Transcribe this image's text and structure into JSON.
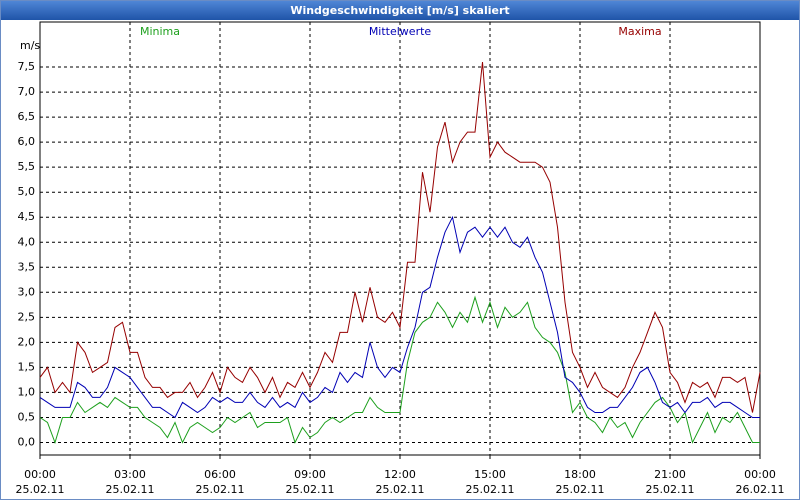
{
  "chart_data": {
    "type": "line",
    "title": "Windgeschwindigkeit [m/s] skaliert",
    "y_label": "m/s",
    "x": [
      0,
      0.25,
      0.5,
      0.75,
      1,
      1.25,
      1.5,
      1.75,
      2,
      2.25,
      2.5,
      2.75,
      3,
      3.25,
      3.5,
      3.75,
      4,
      4.25,
      4.5,
      4.75,
      5,
      5.25,
      5.5,
      5.75,
      6,
      6.25,
      6.5,
      6.75,
      7,
      7.25,
      7.5,
      7.75,
      8,
      8.25,
      8.5,
      8.75,
      9,
      9.25,
      9.5,
      9.75,
      10,
      10.25,
      10.5,
      10.75,
      11,
      11.25,
      11.5,
      11.75,
      12,
      12.25,
      12.5,
      12.75,
      13,
      13.25,
      13.5,
      13.75,
      14,
      14.25,
      14.5,
      14.75,
      15,
      15.25,
      15.5,
      15.75,
      16,
      16.25,
      16.5,
      16.75,
      17,
      17.25,
      17.5,
      17.75,
      18,
      18.25,
      18.5,
      18.75,
      19,
      19.25,
      19.5,
      19.75,
      20,
      20.25,
      20.5,
      20.75,
      21,
      21.25,
      21.5,
      21.75,
      22,
      22.25,
      22.5,
      22.75,
      23,
      23.25,
      23.5,
      23.75,
      24
    ],
    "series": [
      {
        "name": "Minima",
        "color": "#1ea01e",
        "values": [
          0.5,
          0.4,
          0.0,
          0.5,
          0.5,
          0.8,
          0.6,
          0.7,
          0.8,
          0.7,
          0.9,
          0.8,
          0.7,
          0.7,
          0.5,
          0.4,
          0.3,
          0.1,
          0.4,
          0.0,
          0.3,
          0.4,
          0.3,
          0.2,
          0.3,
          0.5,
          0.4,
          0.5,
          0.6,
          0.3,
          0.4,
          0.4,
          0.4,
          0.5,
          0.0,
          0.3,
          0.1,
          0.2,
          0.4,
          0.5,
          0.4,
          0.5,
          0.6,
          0.6,
          0.9,
          0.7,
          0.6,
          0.6,
          0.6,
          1.6,
          2.2,
          2.4,
          2.5,
          2.8,
          2.6,
          2.3,
          2.6,
          2.4,
          2.9,
          2.4,
          2.8,
          2.3,
          2.7,
          2.5,
          2.6,
          2.8,
          2.3,
          2.1,
          2.0,
          1.8,
          1.4,
          0.6,
          0.8,
          0.5,
          0.4,
          0.2,
          0.5,
          0.3,
          0.4,
          0.1,
          0.4,
          0.6,
          0.8,
          0.9,
          0.7,
          0.4,
          0.6,
          0.0,
          0.3,
          0.6,
          0.2,
          0.5,
          0.4,
          0.6,
          0.3,
          0.0,
          0.0
        ]
      },
      {
        "name": "Mittelwerte",
        "color": "#0000b4",
        "values": [
          0.9,
          0.8,
          0.7,
          0.7,
          0.7,
          1.2,
          1.1,
          0.9,
          0.9,
          1.1,
          1.5,
          1.4,
          1.3,
          1.1,
          0.9,
          0.7,
          0.7,
          0.6,
          0.5,
          0.8,
          0.7,
          0.6,
          0.7,
          0.9,
          0.8,
          0.9,
          0.8,
          0.8,
          1.0,
          0.8,
          0.7,
          0.9,
          0.7,
          0.8,
          0.7,
          1.0,
          0.8,
          0.9,
          1.1,
          1.0,
          1.4,
          1.2,
          1.4,
          1.3,
          2.0,
          1.5,
          1.3,
          1.5,
          1.4,
          1.9,
          2.3,
          3.0,
          3.1,
          3.7,
          4.2,
          4.5,
          3.8,
          4.2,
          4.3,
          4.1,
          4.3,
          4.1,
          4.3,
          4.0,
          3.9,
          4.1,
          3.7,
          3.4,
          2.8,
          2.2,
          1.3,
          1.2,
          1.0,
          0.7,
          0.6,
          0.6,
          0.7,
          0.7,
          0.9,
          1.1,
          1.4,
          1.5,
          1.2,
          0.8,
          0.7,
          0.8,
          0.6,
          0.8,
          0.8,
          0.9,
          0.7,
          0.8,
          0.8,
          0.7,
          0.6,
          0.5,
          0.5
        ]
      },
      {
        "name": "Maxima",
        "color": "#960000",
        "values": [
          1.3,
          1.5,
          1.0,
          1.2,
          1.0,
          2.0,
          1.8,
          1.4,
          1.5,
          1.6,
          2.3,
          2.4,
          1.8,
          1.8,
          1.3,
          1.1,
          1.1,
          0.9,
          1.0,
          1.0,
          1.2,
          0.9,
          1.1,
          1.4,
          1.0,
          1.5,
          1.3,
          1.2,
          1.5,
          1.3,
          1.0,
          1.3,
          0.9,
          1.2,
          1.1,
          1.4,
          1.1,
          1.4,
          1.8,
          1.6,
          2.2,
          2.2,
          3.0,
          2.4,
          3.1,
          2.5,
          2.4,
          2.6,
          2.3,
          3.6,
          3.6,
          5.4,
          4.6,
          5.9,
          6.4,
          5.6,
          6.0,
          6.2,
          6.2,
          7.6,
          5.7,
          6.0,
          5.8,
          5.7,
          5.6,
          5.6,
          5.6,
          5.5,
          5.2,
          4.3,
          2.8,
          1.8,
          1.5,
          1.1,
          1.4,
          1.1,
          1.0,
          0.9,
          1.1,
          1.5,
          1.8,
          2.2,
          2.6,
          2.3,
          1.4,
          1.2,
          0.8,
          1.2,
          1.1,
          1.2,
          0.9,
          1.3,
          1.3,
          1.2,
          1.3,
          0.6,
          1.4
        ]
      }
    ],
    "xlim": [
      0,
      24
    ],
    "xticks": [
      {
        "value": 0,
        "label": "00:00",
        "date": "25.02.11"
      },
      {
        "value": 3,
        "label": "03:00",
        "date": "25.02.11"
      },
      {
        "value": 6,
        "label": "06:00",
        "date": "25.02.11"
      },
      {
        "value": 9,
        "label": "09:00",
        "date": "25.02.11"
      },
      {
        "value": 12,
        "label": "12:00",
        "date": "25.02.11"
      },
      {
        "value": 15,
        "label": "15:00",
        "date": "25.02.11"
      },
      {
        "value": 18,
        "label": "18:00",
        "date": "25.02.11"
      },
      {
        "value": 21,
        "label": "21:00",
        "date": "25.02.11"
      },
      {
        "value": 24,
        "label": "00:00",
        "date": "26.02.11"
      }
    ],
    "ylim": [
      -0.25,
      8.4
    ],
    "yticks": [
      {
        "value": 0,
        "label": "0,0"
      },
      {
        "value": 0.5,
        "label": "0,5"
      },
      {
        "value": 1,
        "label": "1,0"
      },
      {
        "value": 1.5,
        "label": "1,5"
      },
      {
        "value": 2,
        "label": "2,0"
      },
      {
        "value": 2.5,
        "label": "2,5"
      },
      {
        "value": 3,
        "label": "3,0"
      },
      {
        "value": 3.5,
        "label": "3,5"
      },
      {
        "value": 4,
        "label": "4,0"
      },
      {
        "value": 4.5,
        "label": "4,5"
      },
      {
        "value": 5,
        "label": "5,0"
      },
      {
        "value": 5.5,
        "label": "5,5"
      },
      {
        "value": 6,
        "label": "6,0"
      },
      {
        "value": 6.5,
        "label": "6,5"
      },
      {
        "value": 7,
        "label": "7,0"
      },
      {
        "value": 7.5,
        "label": "7,5"
      }
    ],
    "grid": true,
    "legend": "top"
  }
}
